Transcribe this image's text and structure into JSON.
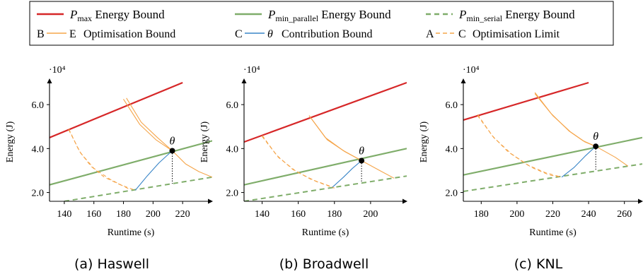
{
  "legend": {
    "entries": [
      {
        "kind": "solid",
        "color": "#d62728",
        "symbol": "P",
        "sub": "max",
        "text": "Energy Bound"
      },
      {
        "kind": "solid",
        "color": "#7fad6a",
        "symbol": "P",
        "sub": "min_parallel",
        "text": "Energy Bound"
      },
      {
        "kind": "dashed",
        "color": "#7fad6a",
        "symbol": "P",
        "sub": "min_serial",
        "text": "Energy Bound"
      },
      {
        "kind": "solid",
        "color": "#f5a54a",
        "left": "B",
        "right": "E",
        "text": "Optimisation Bound"
      },
      {
        "kind": "solid",
        "color": "#3a86c8",
        "left": "C",
        "right": "θ",
        "text": "Contribution Bound"
      },
      {
        "kind": "dashed",
        "color": "#f5a54a",
        "left": "A",
        "right": "C",
        "text": "Optimisation Limit"
      }
    ]
  },
  "colors": {
    "pmax": "#d62728",
    "pmin": "#7fad6a",
    "opt": "#f5a54a",
    "contrib": "#3a86c8"
  },
  "chart_data": [
    {
      "type": "line",
      "caption": "(a) Haswell",
      "xlabel": "Runtime (s)",
      "ylabel": "Energy (J)",
      "y_multiplier": "·10⁴",
      "xlim": [
        130,
        240
      ],
      "ylim": [
        1.6,
        7.0
      ],
      "xticks": [
        140,
        160,
        180,
        200,
        220
      ],
      "yticks": [
        2.0,
        4.0,
        6.0
      ],
      "theta_label": "θ",
      "theta": [
        213,
        3.9
      ],
      "series": [
        {
          "role": "pmax",
          "points": [
            [
              130,
              4.5
            ],
            [
              220,
              7.0
            ]
          ]
        },
        {
          "role": "pmin_parallel",
          "points": [
            [
              130,
              2.35
            ],
            [
              240,
              4.35
            ]
          ]
        },
        {
          "role": "pmin_serial",
          "points": [
            [
              140,
              1.6
            ],
            [
              240,
              2.7
            ]
          ]
        },
        {
          "role": "opt_bound",
          "points": [
            [
              182,
              6.3
            ],
            [
              192,
              5.2
            ],
            [
              203,
              4.5
            ],
            [
              213,
              3.9
            ],
            [
              222,
              3.3
            ],
            [
              231,
              2.95
            ],
            [
              240,
              2.7
            ]
          ]
        },
        {
          "role": "opt_bound",
          "points": [
            [
              180,
              6.25
            ],
            [
              191,
              5.1
            ],
            [
              202,
              4.4
            ],
            [
              213,
              3.9
            ]
          ]
        },
        {
          "role": "opt_limit",
          "points": [
            [
              143,
              4.9
            ],
            [
              150,
              3.9
            ],
            [
              158,
              3.2
            ],
            [
              167,
              2.7
            ],
            [
              178,
              2.35
            ],
            [
              188,
              2.1
            ]
          ]
        },
        {
          "role": "opt_limit",
          "points": [
            [
              143,
              4.85
            ],
            [
              151,
              3.8
            ],
            [
              160,
              3.1
            ],
            [
              171,
              2.6
            ],
            [
              184,
              2.15
            ]
          ]
        },
        {
          "role": "contrib",
          "points": [
            [
              188,
              2.1
            ],
            [
              196,
              2.75
            ],
            [
              204,
              3.35
            ],
            [
              213,
              3.9
            ]
          ]
        }
      ]
    },
    {
      "type": "line",
      "caption": "(b) Broadwell",
      "xlabel": "Runtime (s)",
      "ylabel": "Energy (J)",
      "y_multiplier": "·10⁴",
      "xlim": [
        130,
        220
      ],
      "ylim": [
        1.6,
        7.0
      ],
      "xticks": [
        140,
        160,
        180,
        200
      ],
      "yticks": [
        2.0,
        4.0,
        6.0
      ],
      "theta_label": "θ",
      "theta": [
        195,
        3.45
      ],
      "series": [
        {
          "role": "pmax",
          "points": [
            [
              130,
              4.3
            ],
            [
              220,
              7.0
            ]
          ]
        },
        {
          "role": "pmin_parallel",
          "points": [
            [
              130,
              2.35
            ],
            [
              220,
              4.0
            ]
          ]
        },
        {
          "role": "pmin_serial",
          "points": [
            [
              130,
              1.6
            ],
            [
              220,
              2.75
            ]
          ]
        },
        {
          "role": "opt_bound",
          "points": [
            [
              166,
              5.5
            ],
            [
              175,
              4.5
            ],
            [
              185,
              3.9
            ],
            [
              195,
              3.45
            ],
            [
              205,
              3.0
            ],
            [
              213,
              2.65
            ]
          ]
        },
        {
          "role": "opt_bound",
          "points": [
            [
              166,
              5.5
            ],
            [
              176,
              4.4
            ],
            [
              186,
              3.85
            ],
            [
              195,
              3.45
            ]
          ]
        },
        {
          "role": "opt_limit",
          "points": [
            [
              140,
              4.6
            ],
            [
              148,
              3.7
            ],
            [
              157,
              3.05
            ],
            [
              167,
              2.6
            ],
            [
              179,
              2.25
            ]
          ]
        },
        {
          "role": "opt_limit",
          "points": [
            [
              140,
              4.55
            ],
            [
              149,
              3.6
            ],
            [
              159,
              2.95
            ],
            [
              170,
              2.5
            ],
            [
              180,
              2.2
            ]
          ]
        },
        {
          "role": "contrib",
          "points": [
            [
              179,
              2.25
            ],
            [
              185,
              2.7
            ],
            [
              190,
              3.1
            ],
            [
              195,
              3.45
            ]
          ]
        }
      ]
    },
    {
      "type": "line",
      "caption": "(c) KNL",
      "xlabel": "Runtime (s)",
      "ylabel": "Energy (J)",
      "y_multiplier": "·10⁴",
      "xlim": [
        170,
        270
      ],
      "ylim": [
        1.6,
        7.0
      ],
      "xticks": [
        180,
        200,
        220,
        240,
        260
      ],
      "yticks": [
        2.0,
        4.0,
        6.0
      ],
      "theta_label": "θ",
      "theta": [
        244,
        4.1
      ],
      "series": [
        {
          "role": "pmax",
          "points": [
            [
              170,
              5.3
            ],
            [
              240,
              7.0
            ]
          ]
        },
        {
          "role": "pmin_parallel",
          "points": [
            [
              170,
              2.8
            ],
            [
              270,
              4.5
            ]
          ]
        },
        {
          "role": "pmin_serial",
          "points": [
            [
              170,
              2.05
            ],
            [
              270,
              3.3
            ]
          ]
        },
        {
          "role": "opt_bound",
          "points": [
            [
              210,
              6.55
            ],
            [
              219,
              5.6
            ],
            [
              229,
              4.8
            ],
            [
              237,
              4.35
            ],
            [
              244,
              4.1
            ],
            [
              255,
              3.6
            ],
            [
              262,
              3.2
            ]
          ]
        },
        {
          "role": "opt_bound",
          "points": [
            [
              210,
              6.5
            ],
            [
              220,
              5.5
            ],
            [
              230,
              4.75
            ],
            [
              238,
              4.3
            ],
            [
              244,
              4.1
            ]
          ]
        },
        {
          "role": "opt_limit",
          "points": [
            [
              178,
              5.55
            ],
            [
              186,
              4.6
            ],
            [
              195,
              3.85
            ],
            [
              206,
              3.25
            ],
            [
              216,
              2.9
            ],
            [
              225,
              2.7
            ]
          ]
        },
        {
          "role": "opt_limit",
          "points": [
            [
              178,
              5.5
            ],
            [
              187,
              4.5
            ],
            [
              197,
              3.75
            ],
            [
              208,
              3.15
            ],
            [
              218,
              2.8
            ],
            [
              225,
              2.7
            ]
          ]
        },
        {
          "role": "contrib",
          "points": [
            [
              225,
              2.7
            ],
            [
              232,
              3.15
            ],
            [
              238,
              3.65
            ],
            [
              244,
              4.1
            ]
          ]
        }
      ]
    }
  ]
}
